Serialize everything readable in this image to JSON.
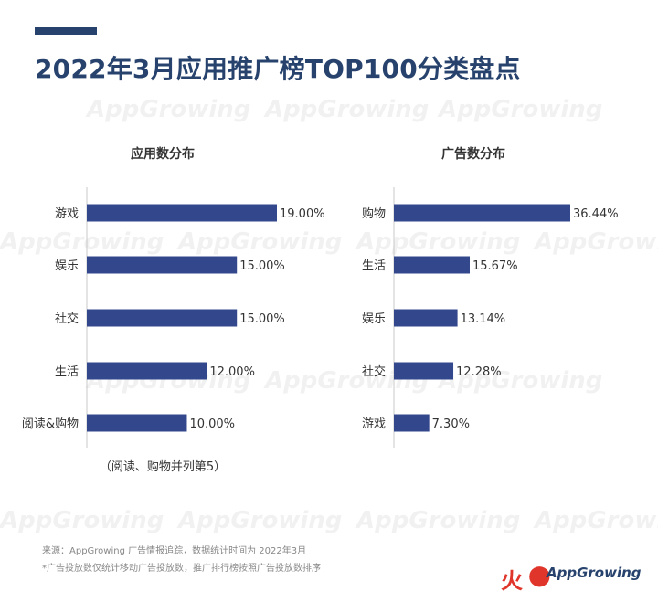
{
  "header": {
    "title": "2022年3月应用推广榜TOP100分类盘点"
  },
  "watermark": "AppGrowing",
  "colors": {
    "accent": "#27436d",
    "bar": "#33478c",
    "brand_red": "#e0352b"
  },
  "left_panel": {
    "title": "应用数分布",
    "note": "（阅读、购物并列第5）"
  },
  "right_panel": {
    "title": "广告数分布"
  },
  "chart_data": [
    {
      "type": "bar",
      "orientation": "horizontal",
      "title": "应用数分布",
      "categories": [
        "游戏",
        "娱乐",
        "社交",
        "生活",
        "阅读&购物"
      ],
      "values": [
        19.0,
        15.0,
        15.0,
        12.0,
        10.0
      ],
      "labels": [
        "19.00%",
        "15.00%",
        "15.00%",
        "12.00%",
        "10.00%"
      ],
      "unit": "%",
      "xlim": [
        0,
        20
      ],
      "grid": false,
      "legend": "none"
    },
    {
      "type": "bar",
      "orientation": "horizontal",
      "title": "广告数分布",
      "categories": [
        "购物",
        "生活",
        "娱乐",
        "社交",
        "游戏"
      ],
      "values": [
        36.44,
        15.67,
        13.14,
        12.28,
        7.3
      ],
      "labels": [
        "36.44%",
        "15.67%",
        "13.14%",
        "12.28%",
        "7.30%"
      ],
      "unit": "%",
      "xlim": [
        0,
        40
      ],
      "grid": false,
      "legend": "none"
    }
  ],
  "footer": {
    "source": "来源：AppGrowing 广告情报追踪，数据统计时间为 2022年3月",
    "note": "*广告投放数仅统计移动广告投放数，推广排行榜按照广告投放数排序",
    "brand_icon": "fire-icon",
    "brand_text": "AppGrowing"
  }
}
